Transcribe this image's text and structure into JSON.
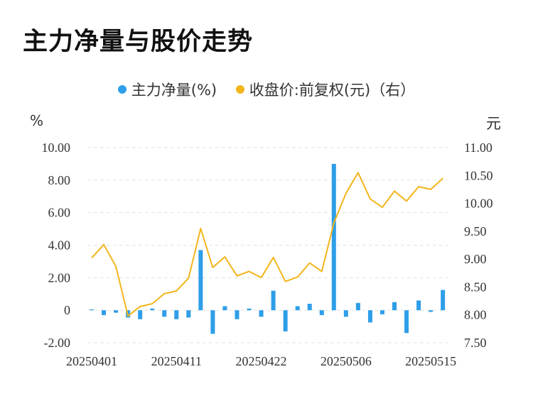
{
  "title": "主力净量与股价走势",
  "legend": {
    "net": "主力净量(%)",
    "price": "收盘价:前复权(元)（右）"
  },
  "colors": {
    "net": "#2e9ee8",
    "price": "#f2b51b",
    "grid": "#e3e3e3"
  },
  "chart_data": {
    "type": "bar+line",
    "left_axis": {
      "unit": "%",
      "ylim": [
        -2,
        10
      ],
      "ticks": [
        "-2.00",
        "0",
        "2.00",
        "4.00",
        "6.00",
        "8.00",
        "10.00"
      ]
    },
    "right_axis": {
      "unit": "元",
      "ylim": [
        7.5,
        11
      ],
      "ticks": [
        "7.50",
        "8.00",
        "8.50",
        "9.00",
        "9.50",
        "10.00",
        "10.50",
        "11.00"
      ]
    },
    "x_tick_labels": [
      "20250401",
      "20250411",
      "20250422",
      "20250506",
      "20250515"
    ],
    "x_tick_indices": [
      0,
      7,
      14,
      21,
      28
    ],
    "grid": true,
    "legend_position": "top",
    "series": [
      {
        "name": "主力净量(%)",
        "type": "bar",
        "axis": "left",
        "values": [
          0.05,
          -0.3,
          -0.15,
          -0.45,
          -0.55,
          0.1,
          -0.4,
          -0.55,
          -0.45,
          3.7,
          -1.45,
          0.25,
          -0.55,
          0.1,
          -0.4,
          1.2,
          -1.3,
          0.25,
          0.4,
          -0.3,
          9.0,
          -0.4,
          0.45,
          -0.75,
          -0.25,
          0.5,
          -1.4,
          0.6,
          -0.1,
          1.25
        ]
      },
      {
        "name": "收盘价:前复权(元)（右）",
        "type": "line",
        "axis": "right",
        "values": [
          9.02,
          9.26,
          8.87,
          7.98,
          8.15,
          8.2,
          8.38,
          8.43,
          8.66,
          9.55,
          8.85,
          9.04,
          8.7,
          8.78,
          8.67,
          9.03,
          8.6,
          8.68,
          8.93,
          8.78,
          9.65,
          10.18,
          10.55,
          10.08,
          9.93,
          10.22,
          10.04,
          10.3,
          10.25,
          10.45
        ]
      }
    ]
  }
}
